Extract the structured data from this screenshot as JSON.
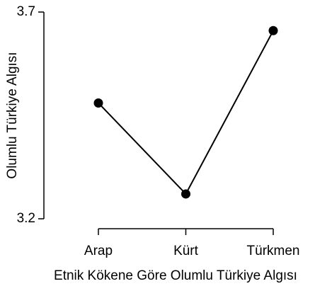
{
  "chart_data": {
    "type": "line",
    "x_label": "Etnik Kökene Göre Olumlu Türkiye Algısı",
    "y_label": "Olumlu Türkiye Algısı",
    "categories": [
      "Arap",
      "Kürt",
      "Türkmen"
    ],
    "values": [
      3.48,
      3.26,
      3.655
    ],
    "color": "#000000",
    "ylim": [
      3.2,
      3.7
    ],
    "yticks": [
      3.2,
      3.7
    ],
    "grid": false
  }
}
